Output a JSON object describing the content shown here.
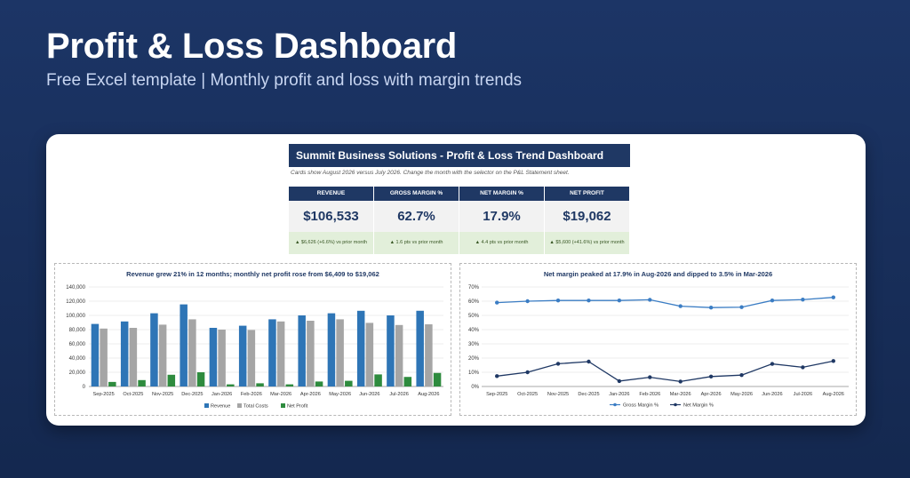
{
  "hero": {
    "title": "Profit & Loss Dashboard",
    "subtitle": "Free Excel template  |  Monthly profit and loss with margin trends"
  },
  "sheet": {
    "header": "Summit Business Solutions - Profit & Loss Trend Dashboard",
    "note": "Cards show August 2026 versus July 2026. Change the month with the selector on the P&L Statement sheet."
  },
  "kpis": [
    {
      "label": "REVENUE",
      "value": "$106,533",
      "delta": "▲ $6,626 (+6.6%) vs prior month"
    },
    {
      "label": "GROSS MARGIN %",
      "value": "62.7%",
      "delta": "▲ 1.6 pts vs prior month"
    },
    {
      "label": "NET MARGIN %",
      "value": "17.9%",
      "delta": "▲ 4.4 pts vs prior month"
    },
    {
      "label": "NET PROFIT",
      "value": "$19,062",
      "delta": "▲ $5,600 (+41.6%) vs prior month"
    }
  ],
  "colors": {
    "navy": "#1f3864",
    "revenue": "#2e75b6",
    "costs": "#a5a5a5",
    "profit": "#2e8b3e",
    "gross": "#3b7dc4",
    "net": "#1f3864",
    "delta_bg": "#e2efda",
    "delta_text": "#375623"
  },
  "chart_data": [
    {
      "type": "bar",
      "title": "Revenue grew 21% in 12 months; monthly net profit rose from $6,409 to $19,062",
      "categories": [
        "Sep-2025",
        "Oct-2025",
        "Nov-2025",
        "Dec-2025",
        "Jan-2026",
        "Feb-2026",
        "Mar-2026",
        "Apr-2026",
        "May-2026",
        "Jun-2026",
        "Jul-2026",
        "Aug-2026"
      ],
      "series": [
        {
          "name": "Revenue",
          "values": [
            88000,
            91500,
            103000,
            115500,
            82500,
            85500,
            94500,
            100000,
            103000,
            106500,
            100000,
            106533
          ]
        },
        {
          "name": "Total Costs",
          "values": [
            81500,
            82500,
            87000,
            94500,
            80000,
            79500,
            91500,
            92500,
            94500,
            89500,
            86500,
            87471
          ]
        },
        {
          "name": "Net Profit",
          "values": [
            6409,
            9000,
            16500,
            20000,
            3000,
            4500,
            3000,
            7000,
            8000,
            17000,
            13462,
            19062
          ]
        }
      ],
      "ylim": [
        0,
        140000
      ],
      "yticks": [
        "0",
        "20,000",
        "40,000",
        "60,000",
        "80,000",
        "100,000",
        "120,000",
        "140,000"
      ],
      "legend": "bottom",
      "grid": true
    },
    {
      "type": "line",
      "title": "Net margin peaked at 17.9% in Aug-2026 and dipped to 3.5% in Mar-2026",
      "categories": [
        "Sep-2025",
        "Oct-2025",
        "Nov-2025",
        "Dec-2025",
        "Jan-2026",
        "Feb-2026",
        "Mar-2026",
        "Apr-2026",
        "May-2026",
        "Jun-2026",
        "Jul-2026",
        "Aug-2026"
      ],
      "series": [
        {
          "name": "Gross Margin %",
          "values": [
            59,
            60,
            60.5,
            60.5,
            60.5,
            61,
            56.5,
            55.5,
            55.8,
            60.5,
            61.1,
            62.7
          ]
        },
        {
          "name": "Net Margin %",
          "values": [
            7.3,
            10,
            16,
            17.5,
            3.8,
            6.5,
            3.5,
            7,
            8,
            15.9,
            13.5,
            17.9
          ]
        }
      ],
      "ylim": [
        0,
        70
      ],
      "yticks": [
        "0%",
        "10%",
        "20%",
        "30%",
        "40%",
        "50%",
        "60%",
        "70%"
      ],
      "legend": "bottom",
      "grid": true
    }
  ]
}
